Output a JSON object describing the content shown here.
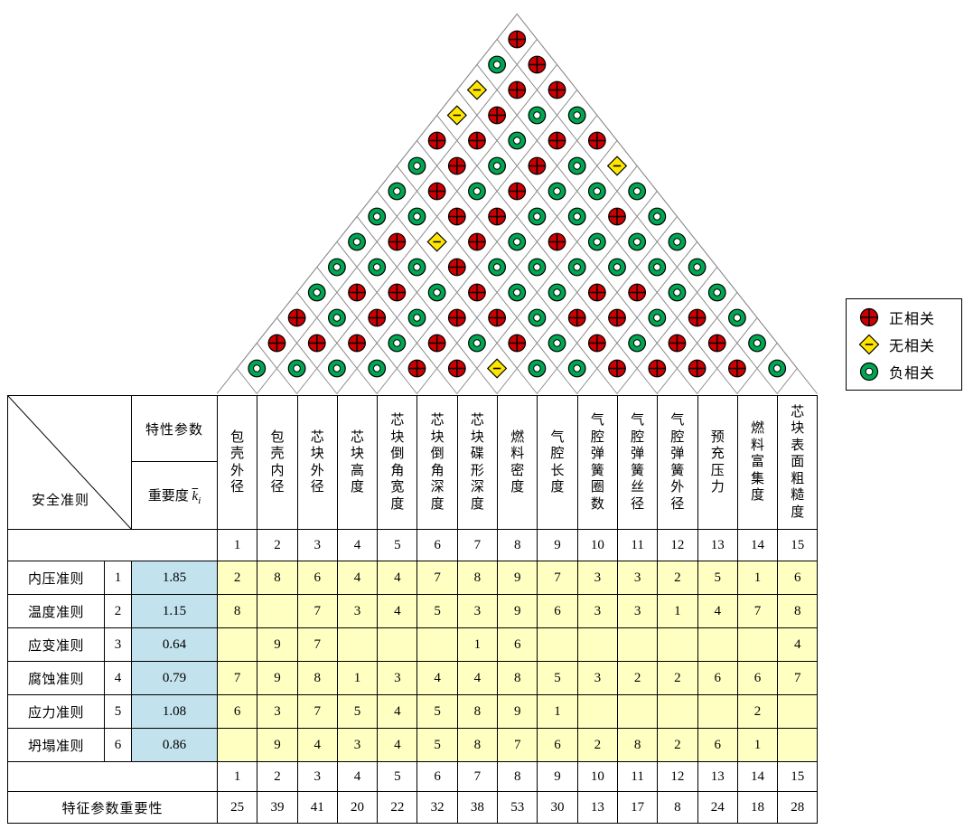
{
  "colors": {
    "positive": "#cc0000",
    "negative": "#00a651",
    "none": "#ffe600",
    "relationship_cell": "#ffffc2",
    "importance_cell": "#c2e2ee"
  },
  "legend": {
    "items": [
      {
        "symbol": "+",
        "label": "正相关"
      },
      {
        "symbol": "0",
        "label": "无相关"
      },
      {
        "symbol": "-",
        "label": "负相关"
      }
    ]
  },
  "header": {
    "criteria_label": "安全准则",
    "param_label": "特性参数",
    "importance_label": "重要度",
    "importance_var": "k",
    "importance_sub": "i"
  },
  "parameters": [
    "包壳外径",
    "包壳内径",
    "芯块外径",
    "芯块高度",
    "芯块倒角宽度",
    "芯块倒角深度",
    "芯块碟形深度",
    "燃料密度",
    "气腔长度",
    "气腔弹簧圈数",
    "气腔弹簧丝径",
    "气腔弹簧外径",
    "预充压力",
    "燃料富集度",
    "芯块表面粗糙度"
  ],
  "param_numbers": [
    1,
    2,
    3,
    4,
    5,
    6,
    7,
    8,
    9,
    10,
    11,
    12,
    13,
    14,
    15
  ],
  "criteria": [
    {
      "name": "内压准则",
      "num": "1",
      "importance": "1.85",
      "values": [
        "2",
        "8",
        "6",
        "4",
        "4",
        "7",
        "8",
        "9",
        "7",
        "3",
        "3",
        "2",
        "5",
        "1",
        "6"
      ]
    },
    {
      "name": "温度准则",
      "num": "2",
      "importance": "1.15",
      "values": [
        "8",
        "",
        "7",
        "3",
        "4",
        "5",
        "3",
        "9",
        "6",
        "3",
        "3",
        "1",
        "4",
        "7",
        "8"
      ]
    },
    {
      "name": "应变准则",
      "num": "3",
      "importance": "0.64",
      "values": [
        "",
        "9",
        "7",
        "",
        "",
        "",
        "1",
        "6",
        "",
        "",
        "",
        "",
        "",
        "",
        "4"
      ]
    },
    {
      "name": "腐蚀准则",
      "num": "4",
      "importance": "0.79",
      "values": [
        "7",
        "9",
        "8",
        "1",
        "3",
        "4",
        "4",
        "8",
        "5",
        "3",
        "2",
        "2",
        "6",
        "6",
        "7"
      ]
    },
    {
      "name": "应力准则",
      "num": "5",
      "importance": "1.08",
      "values": [
        "6",
        "3",
        "7",
        "5",
        "4",
        "5",
        "8",
        "9",
        "1",
        "",
        "",
        "",
        "",
        "2",
        ""
      ]
    },
    {
      "name": "坍塌准则",
      "num": "6",
      "importance": "0.86",
      "values": [
        "",
        "9",
        "4",
        "3",
        "4",
        "5",
        "8",
        "7",
        "6",
        "2",
        "8",
        "2",
        "6",
        "1",
        ""
      ]
    }
  ],
  "footer": {
    "label": "特征参数重要性",
    "values": [
      25,
      39,
      41,
      20,
      22,
      32,
      38,
      53,
      30,
      13,
      17,
      8,
      24,
      18,
      28
    ]
  },
  "roof": {
    "note": "rows top to bottom; + positive, - negative, 0 none; row k pairs columns i and i+(15-len)",
    "rows": [
      "+",
      "-+",
      "0++",
      "0+--",
      "++-++",
      "-+-+-0",
      "-+-+---",
      "--++--+-",
      "-+0+-+---",
      "---+------",
      "-++-+--++--",
      "+-+-++-++-+-",
      "+++-+-+-+-++-",
      "----++0--++++-"
    ]
  }
}
